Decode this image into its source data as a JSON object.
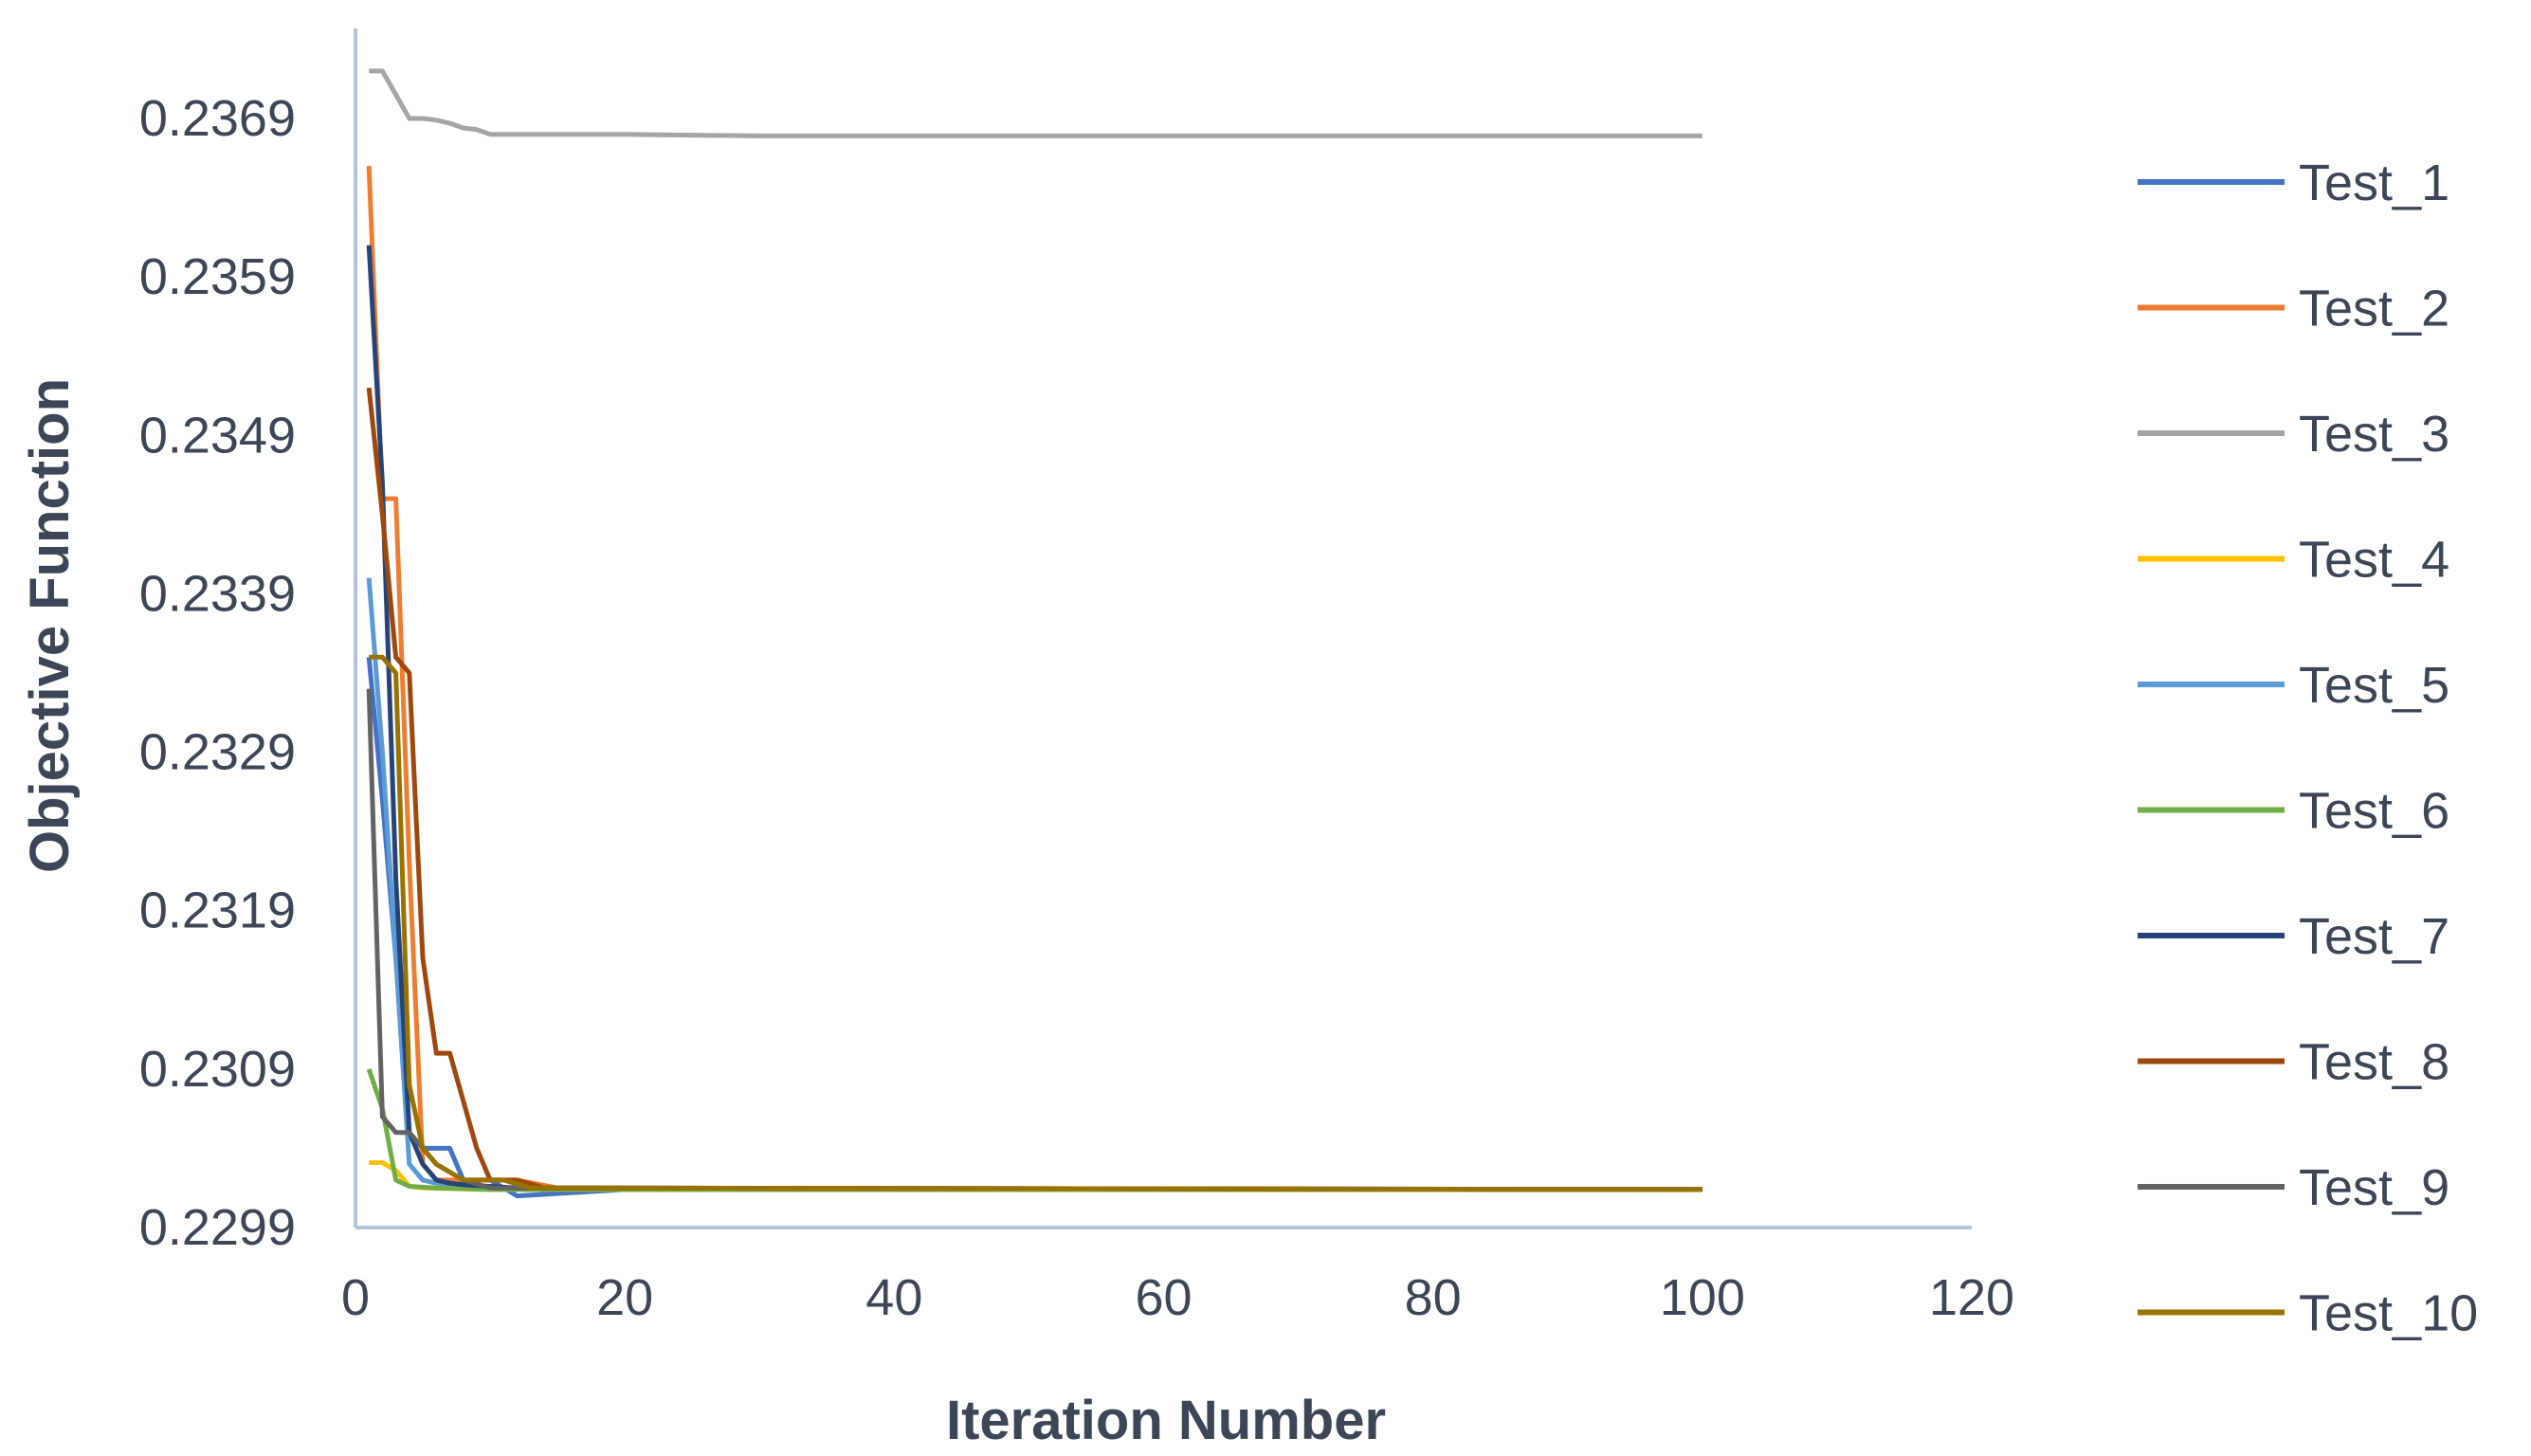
{
  "chart_data": {
    "type": "line",
    "title": "",
    "xlabel": "Iteration Number",
    "ylabel": "Objective Function",
    "xlim": [
      0,
      120
    ],
    "ylim": [
      0.2299,
      0.2369
    ],
    "x_ticks": [
      "0",
      "20",
      "40",
      "60",
      "80",
      "100",
      "120"
    ],
    "y_ticks": [
      "0.2299",
      "0.2309",
      "0.2319",
      "0.2329",
      "0.2339",
      "0.2349",
      "0.2359",
      "0.2369"
    ],
    "grid": false,
    "legend_position": "right",
    "axis_color": "#b4c4d8",
    "text_color": "#3d4656",
    "series": [
      {
        "name": "Test_1",
        "color": "#4472c4",
        "points": [
          [
            1,
            0.2335
          ],
          [
            2,
            0.2326
          ],
          [
            3,
            0.2316
          ],
          [
            4,
            0.2305
          ],
          [
            5,
            0.2304
          ],
          [
            6,
            0.2304
          ],
          [
            7,
            0.2304
          ],
          [
            8,
            0.2302
          ],
          [
            10,
            0.2302
          ],
          [
            12,
            0.2301
          ],
          [
            20,
            0.23014
          ],
          [
            100,
            0.23014
          ]
        ]
      },
      {
        "name": "Test_2",
        "color": "#ed7d31",
        "points": [
          [
            1,
            0.2366
          ],
          [
            2,
            0.2345
          ],
          [
            3,
            0.2345
          ],
          [
            4,
            0.2322
          ],
          [
            5,
            0.2303
          ],
          [
            6,
            0.2302
          ],
          [
            10,
            0.2302
          ],
          [
            12,
            0.2302
          ],
          [
            15,
            0.23015
          ],
          [
            25,
            0.23014
          ],
          [
            100,
            0.23014
          ]
        ]
      },
      {
        "name": "Test_3",
        "color": "#a5a5a5",
        "points": [
          [
            1,
            0.2372
          ],
          [
            2,
            0.2372
          ],
          [
            3,
            0.23705
          ],
          [
            4,
            0.2369
          ],
          [
            5,
            0.2369
          ],
          [
            6,
            0.23689
          ],
          [
            7,
            0.23687
          ],
          [
            8,
            0.23684
          ],
          [
            9,
            0.23683
          ],
          [
            10,
            0.2368
          ],
          [
            20,
            0.2368
          ],
          [
            30,
            0.23679
          ],
          [
            100,
            0.23679
          ]
        ]
      },
      {
        "name": "Test_4",
        "color": "#ffc000",
        "points": [
          [
            1,
            0.23031
          ],
          [
            2,
            0.23031
          ],
          [
            3,
            0.23026
          ],
          [
            4,
            0.23016
          ],
          [
            5,
            0.23015
          ],
          [
            10,
            0.23014
          ],
          [
            100,
            0.23014
          ]
        ]
      },
      {
        "name": "Test_5",
        "color": "#5b9bd5",
        "points": [
          [
            1,
            0.234
          ],
          [
            2,
            0.2329
          ],
          [
            3,
            0.2316
          ],
          [
            4,
            0.2303
          ],
          [
            5,
            0.2302
          ],
          [
            6,
            0.23018
          ],
          [
            8,
            0.23016
          ],
          [
            12,
            0.23015
          ],
          [
            100,
            0.23014
          ]
        ]
      },
      {
        "name": "Test_6",
        "color": "#70ad47",
        "points": [
          [
            1,
            0.2309
          ],
          [
            2,
            0.23065
          ],
          [
            3,
            0.2302
          ],
          [
            4,
            0.23016
          ],
          [
            6,
            0.23015
          ],
          [
            10,
            0.23014
          ],
          [
            100,
            0.23014
          ]
        ]
      },
      {
        "name": "Test_7",
        "color": "#264478",
        "points": [
          [
            1,
            0.2361
          ],
          [
            2,
            0.2346
          ],
          [
            3,
            0.2321
          ],
          [
            4,
            0.2305
          ],
          [
            5,
            0.2303
          ],
          [
            6,
            0.2302
          ],
          [
            7,
            0.23018
          ],
          [
            8,
            0.23017
          ],
          [
            12,
            0.23015
          ],
          [
            100,
            0.23014
          ]
        ]
      },
      {
        "name": "Test_8",
        "color": "#9e480e",
        "points": [
          [
            1,
            0.2352
          ],
          [
            2,
            0.2344
          ],
          [
            3,
            0.2335
          ],
          [
            4,
            0.2334
          ],
          [
            5,
            0.2316
          ],
          [
            6,
            0.231
          ],
          [
            7,
            0.231
          ],
          [
            8,
            0.2307
          ],
          [
            9,
            0.2304
          ],
          [
            10,
            0.2302
          ],
          [
            12,
            0.2302
          ],
          [
            14,
            0.23015
          ],
          [
            100,
            0.23014
          ]
        ]
      },
      {
        "name": "Test_9",
        "color": "#636363",
        "points": [
          [
            1,
            0.2333
          ],
          [
            2,
            0.2306
          ],
          [
            3,
            0.2305
          ],
          [
            4,
            0.2305
          ],
          [
            5,
            0.2304
          ],
          [
            6,
            0.2303
          ],
          [
            8,
            0.2302
          ],
          [
            10,
            0.23015
          ],
          [
            100,
            0.23014
          ]
        ]
      },
      {
        "name": "Test_10",
        "color": "#997300",
        "points": [
          [
            1,
            0.2335
          ],
          [
            2,
            0.2335
          ],
          [
            3,
            0.2334
          ],
          [
            4,
            0.2308
          ],
          [
            5,
            0.2304
          ],
          [
            6,
            0.2303
          ],
          [
            8,
            0.2302
          ],
          [
            11,
            0.2302
          ],
          [
            13,
            0.23015
          ],
          [
            100,
            0.23014
          ]
        ]
      }
    ]
  }
}
